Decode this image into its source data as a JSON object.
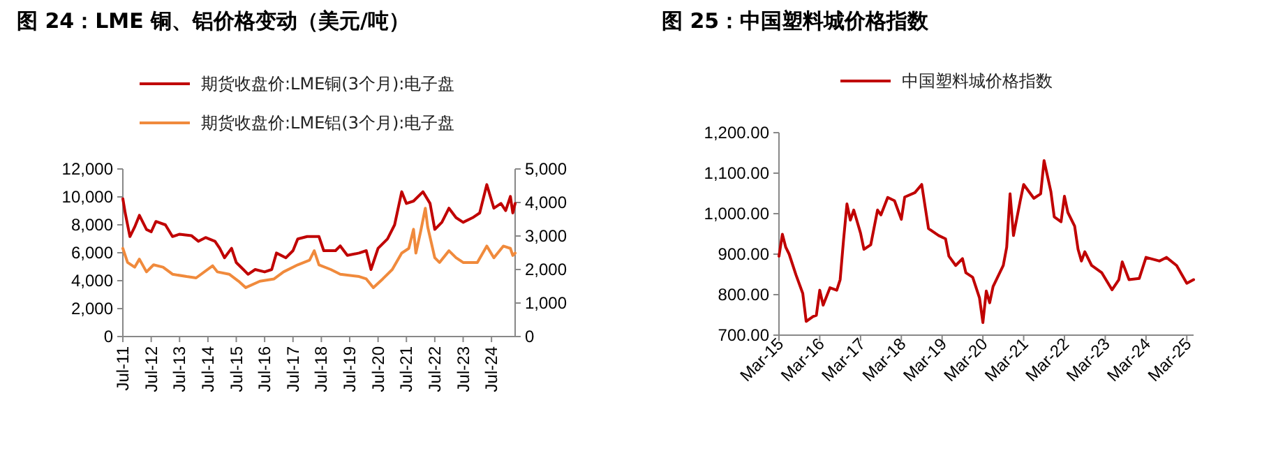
{
  "chart_data": [
    {
      "type": "line",
      "title": "图 24：LME 铜、铝价格变动（美元/吨）",
      "legend": "top",
      "xlim": [
        "2011-07",
        "2025-05"
      ],
      "xticks": [
        {
          "value": "2011-07",
          "label": "Jul-11"
        },
        {
          "value": "2012-07",
          "label": "Jul-12"
        },
        {
          "value": "2013-07",
          "label": "Jul-13"
        },
        {
          "value": "2014-07",
          "label": "Jul-14"
        },
        {
          "value": "2015-07",
          "label": "Jul-15"
        },
        {
          "value": "2016-07",
          "label": "Jul-16"
        },
        {
          "value": "2017-07",
          "label": "Jul-17"
        },
        {
          "value": "2018-07",
          "label": "Jul-18"
        },
        {
          "value": "2019-07",
          "label": "Jul-19"
        },
        {
          "value": "2020-07",
          "label": "Jul-20"
        },
        {
          "value": "2021-07",
          "label": "Jul-21"
        },
        {
          "value": "2022-07",
          "label": "Jul-22"
        },
        {
          "value": "2023-07",
          "label": "Jul-23"
        },
        {
          "value": "2024-07",
          "label": "Jul-24"
        }
      ],
      "ylim": [
        0,
        12000
      ],
      "yticks": [
        0,
        {
          "value": 2000,
          "label": "2,000"
        },
        {
          "value": 4000,
          "label": "4,000"
        },
        {
          "value": 6000,
          "label": "6,000"
        },
        {
          "value": 8000,
          "label": "8,000"
        },
        {
          "value": 10000,
          "label": "10,000"
        },
        {
          "value": 12000,
          "label": "12,000"
        }
      ],
      "y2lim": [
        0,
        5000
      ],
      "y2ticks": [
        0,
        {
          "value": 1000,
          "label": "1,000"
        },
        {
          "value": 2000,
          "label": "2,000"
        },
        {
          "value": 3000,
          "label": "3,000"
        },
        {
          "value": 4000,
          "label": "4,000"
        },
        {
          "value": 5000,
          "label": "5,000"
        }
      ],
      "series": [
        {
          "name": "期货收盘价:LME铜(3个月):电子盘",
          "color": "#c00000",
          "x": [
            "2011-07",
            "2011-08",
            "2011-10",
            "2011-12",
            "2012-02",
            "2012-05",
            "2012-07",
            "2012-09",
            "2013-01",
            "2013-04",
            "2013-07",
            "2013-12",
            "2014-03",
            "2014-06",
            "2014-10",
            "2014-12",
            "2015-02",
            "2015-05",
            "2015-07",
            "2015-10",
            "2015-12",
            "2016-03",
            "2016-07",
            "2016-10",
            "2016-12",
            "2017-04",
            "2017-07",
            "2017-09",
            "2018-01",
            "2018-06",
            "2018-08",
            "2019-01",
            "2019-03",
            "2019-06",
            "2019-11",
            "2020-02",
            "2020-04",
            "2020-07",
            "2020-11",
            "2021-02",
            "2021-05",
            "2021-07",
            "2021-10",
            "2022-02",
            "2022-05",
            "2022-07",
            "2022-10",
            "2023-01",
            "2023-04",
            "2023-07",
            "2023-11",
            "2024-02",
            "2024-05",
            "2024-08",
            "2024-11",
            "2025-01",
            "2025-03",
            "2025-04",
            "2025-05"
          ],
          "values": [
            9870,
            8850,
            7160,
            7840,
            8680,
            7670,
            7500,
            8240,
            8000,
            7160,
            7330,
            7230,
            6820,
            7090,
            6820,
            6320,
            5640,
            6320,
            5300,
            4800,
            4460,
            4800,
            4630,
            4800,
            5980,
            5640,
            6150,
            6990,
            7160,
            7160,
            6150,
            6150,
            6490,
            5810,
            5980,
            6150,
            4800,
            6320,
            6990,
            8000,
            10370,
            9530,
            9700,
            10370,
            9530,
            7670,
            8180,
            9190,
            8510,
            8180,
            8510,
            8850,
            10880,
            9190,
            9530,
            9020,
            10030,
            8850,
            9530
          ]
        },
        {
          "name": "期货收盘价:LME铝(3个月):电子盘",
          "color": "#f08a3c",
          "axis": "y2",
          "x": [
            "2011-07",
            "2011-09",
            "2011-12",
            "2012-02",
            "2012-05",
            "2012-08",
            "2012-12",
            "2013-04",
            "2013-10",
            "2014-02",
            "2014-09",
            "2014-11",
            "2015-04",
            "2015-08",
            "2015-11",
            "2016-05",
            "2016-11",
            "2017-03",
            "2017-09",
            "2018-02",
            "2018-04",
            "2018-06",
            "2018-11",
            "2019-03",
            "2019-11",
            "2020-02",
            "2020-05",
            "2020-09",
            "2021-01",
            "2021-05",
            "2021-08",
            "2021-10",
            "2021-11",
            "2022-01",
            "2022-03",
            "2022-04",
            "2022-07",
            "2022-09",
            "2023-01",
            "2023-04",
            "2023-07",
            "2024-01",
            "2024-05",
            "2024-08",
            "2024-12",
            "2025-03",
            "2025-04",
            "2025-05"
          ],
          "values": [
            2630,
            2210,
            2070,
            2310,
            1930,
            2140,
            2070,
            1860,
            1790,
            1750,
            2110,
            1930,
            1860,
            1650,
            1460,
            1650,
            1720,
            1930,
            2140,
            2280,
            2560,
            2140,
            2000,
            1860,
            1790,
            1720,
            1460,
            1720,
            2000,
            2490,
            2630,
            3200,
            2490,
            3130,
            3830,
            3270,
            2350,
            2210,
            2560,
            2350,
            2210,
            2210,
            2700,
            2350,
            2700,
            2630,
            2420,
            2490
          ]
        }
      ]
    },
    {
      "type": "line",
      "title": "图 25：中国塑料城价格指数",
      "legend": "top left",
      "xlim": [
        "2015-03",
        "2025-05"
      ],
      "xticks": [
        {
          "value": "2015-03",
          "label": "Mar-15"
        },
        {
          "value": "2016-03",
          "label": "Mar-16"
        },
        {
          "value": "2017-03",
          "label": "Mar-17"
        },
        {
          "value": "2018-03",
          "label": "Mar-18"
        },
        {
          "value": "2019-03",
          "label": "Mar-19"
        },
        {
          "value": "2020-03",
          "label": "Mar-20"
        },
        {
          "value": "2021-03",
          "label": "Mar-21"
        },
        {
          "value": "2022-03",
          "label": "Mar-22"
        },
        {
          "value": "2023-03",
          "label": "Mar-23"
        },
        {
          "value": "2024-03",
          "label": "Mar-24"
        },
        {
          "value": "2025-03",
          "label": "Mar-25"
        }
      ],
      "ylim": [
        700,
        1200
      ],
      "yticks": [
        {
          "value": 700,
          "label": "700.00"
        },
        {
          "value": 800,
          "label": "800.00"
        },
        {
          "value": 900,
          "label": "900.00"
        },
        {
          "value": 1000,
          "label": "1,000.00"
        },
        {
          "value": 1100,
          "label": "1,100.00"
        },
        {
          "value": 1200,
          "label": "1,200.00"
        }
      ],
      "series": [
        {
          "name": "中国塑料城价格指数",
          "color": "#c00000",
          "x": [
            "2015-03",
            "2015-04",
            "2015-05",
            "2015-06",
            "2015-08",
            "2015-10",
            "2015-11",
            "2016-01",
            "2016-02",
            "2016-03",
            "2016-04",
            "2016-06",
            "2016-08",
            "2016-09",
            "2016-10",
            "2016-11",
            "2016-12",
            "2017-01",
            "2017-03",
            "2017-04",
            "2017-06",
            "2017-08",
            "2017-09",
            "2017-11",
            "2018-01",
            "2018-03",
            "2018-04",
            "2018-07",
            "2018-09",
            "2018-11",
            "2019-02",
            "2019-04",
            "2019-05",
            "2019-07",
            "2019-09",
            "2019-10",
            "2019-12",
            "2020-02",
            "2020-03",
            "2020-04",
            "2020-05",
            "2020-06",
            "2020-09",
            "2020-10",
            "2020-11",
            "2020-12",
            "2021-02",
            "2021-03",
            "2021-06",
            "2021-08",
            "2021-09",
            "2021-11",
            "2021-12",
            "2022-02",
            "2022-03",
            "2022-04",
            "2022-06",
            "2022-07",
            "2022-08",
            "2022-09",
            "2022-11",
            "2023-02",
            "2023-05",
            "2023-07",
            "2023-08",
            "2023-10",
            "2024-01",
            "2024-03",
            "2024-07",
            "2024-09",
            "2024-12",
            "2025-03",
            "2025-05"
          ],
          "values": [
            895,
            949,
            917,
            900,
            849,
            803,
            734,
            746,
            749,
            811,
            774,
            817,
            811,
            837,
            935,
            1024,
            984,
            1009,
            952,
            912,
            923,
            1009,
            997,
            1040,
            1032,
            986,
            1041,
            1052,
            1072,
            963,
            946,
            938,
            895,
            872,
            889,
            854,
            843,
            792,
            731,
            809,
            780,
            820,
            872,
            917,
            1049,
            946,
            1032,
            1072,
            1038,
            1049,
            1131,
            1055,
            992,
            980,
            1043,
            1003,
            969,
            912,
            883,
            906,
            872,
            854,
            812,
            837,
            881,
            837,
            840,
            892,
            883,
            892,
            872,
            828,
            837
          ]
        }
      ]
    }
  ]
}
